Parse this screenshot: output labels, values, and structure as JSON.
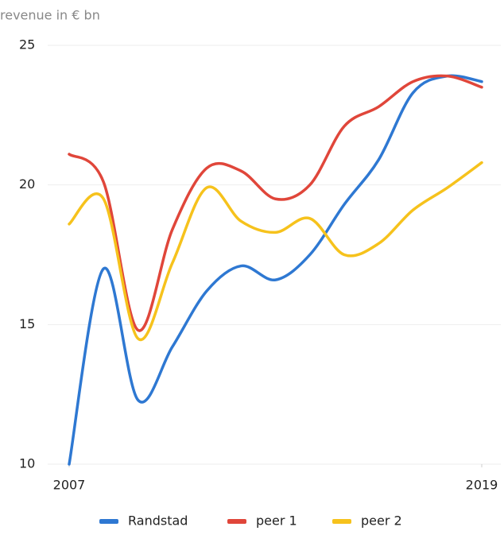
{
  "chart_data": {
    "type": "line",
    "y_label": "revenue in  € bn",
    "x": [
      2007,
      2008,
      2009,
      2010,
      2011,
      2012,
      2013,
      2014,
      2015,
      2016,
      2017,
      2018,
      2019
    ],
    "xlim": [
      2007,
      2019
    ],
    "xticks": [
      2007,
      2019
    ],
    "ylim": [
      10,
      25
    ],
    "yticks": [
      10,
      15,
      20,
      25
    ],
    "grid": true,
    "series": [
      {
        "name": "Randstad",
        "color": "#2e78d2",
        "values": [
          10,
          17,
          12.3,
          14.2,
          16.2,
          17.1,
          16.6,
          17.5,
          19.3,
          20.9,
          23.3,
          23.9,
          23.7
        ]
      },
      {
        "name": "peer 1",
        "color": "#e0463a",
        "values": [
          21.1,
          20.1,
          14.8,
          18.4,
          20.6,
          20.5,
          19.5,
          20.0,
          22.1,
          22.8,
          23.7,
          23.9,
          23.5
        ]
      },
      {
        "name": "peer 2",
        "color": "#f6c21c",
        "values": [
          18.6,
          19.5,
          14.5,
          17.2,
          19.9,
          18.7,
          18.3,
          18.8,
          17.5,
          17.9,
          19.1,
          19.9,
          20.8
        ]
      }
    ]
  }
}
